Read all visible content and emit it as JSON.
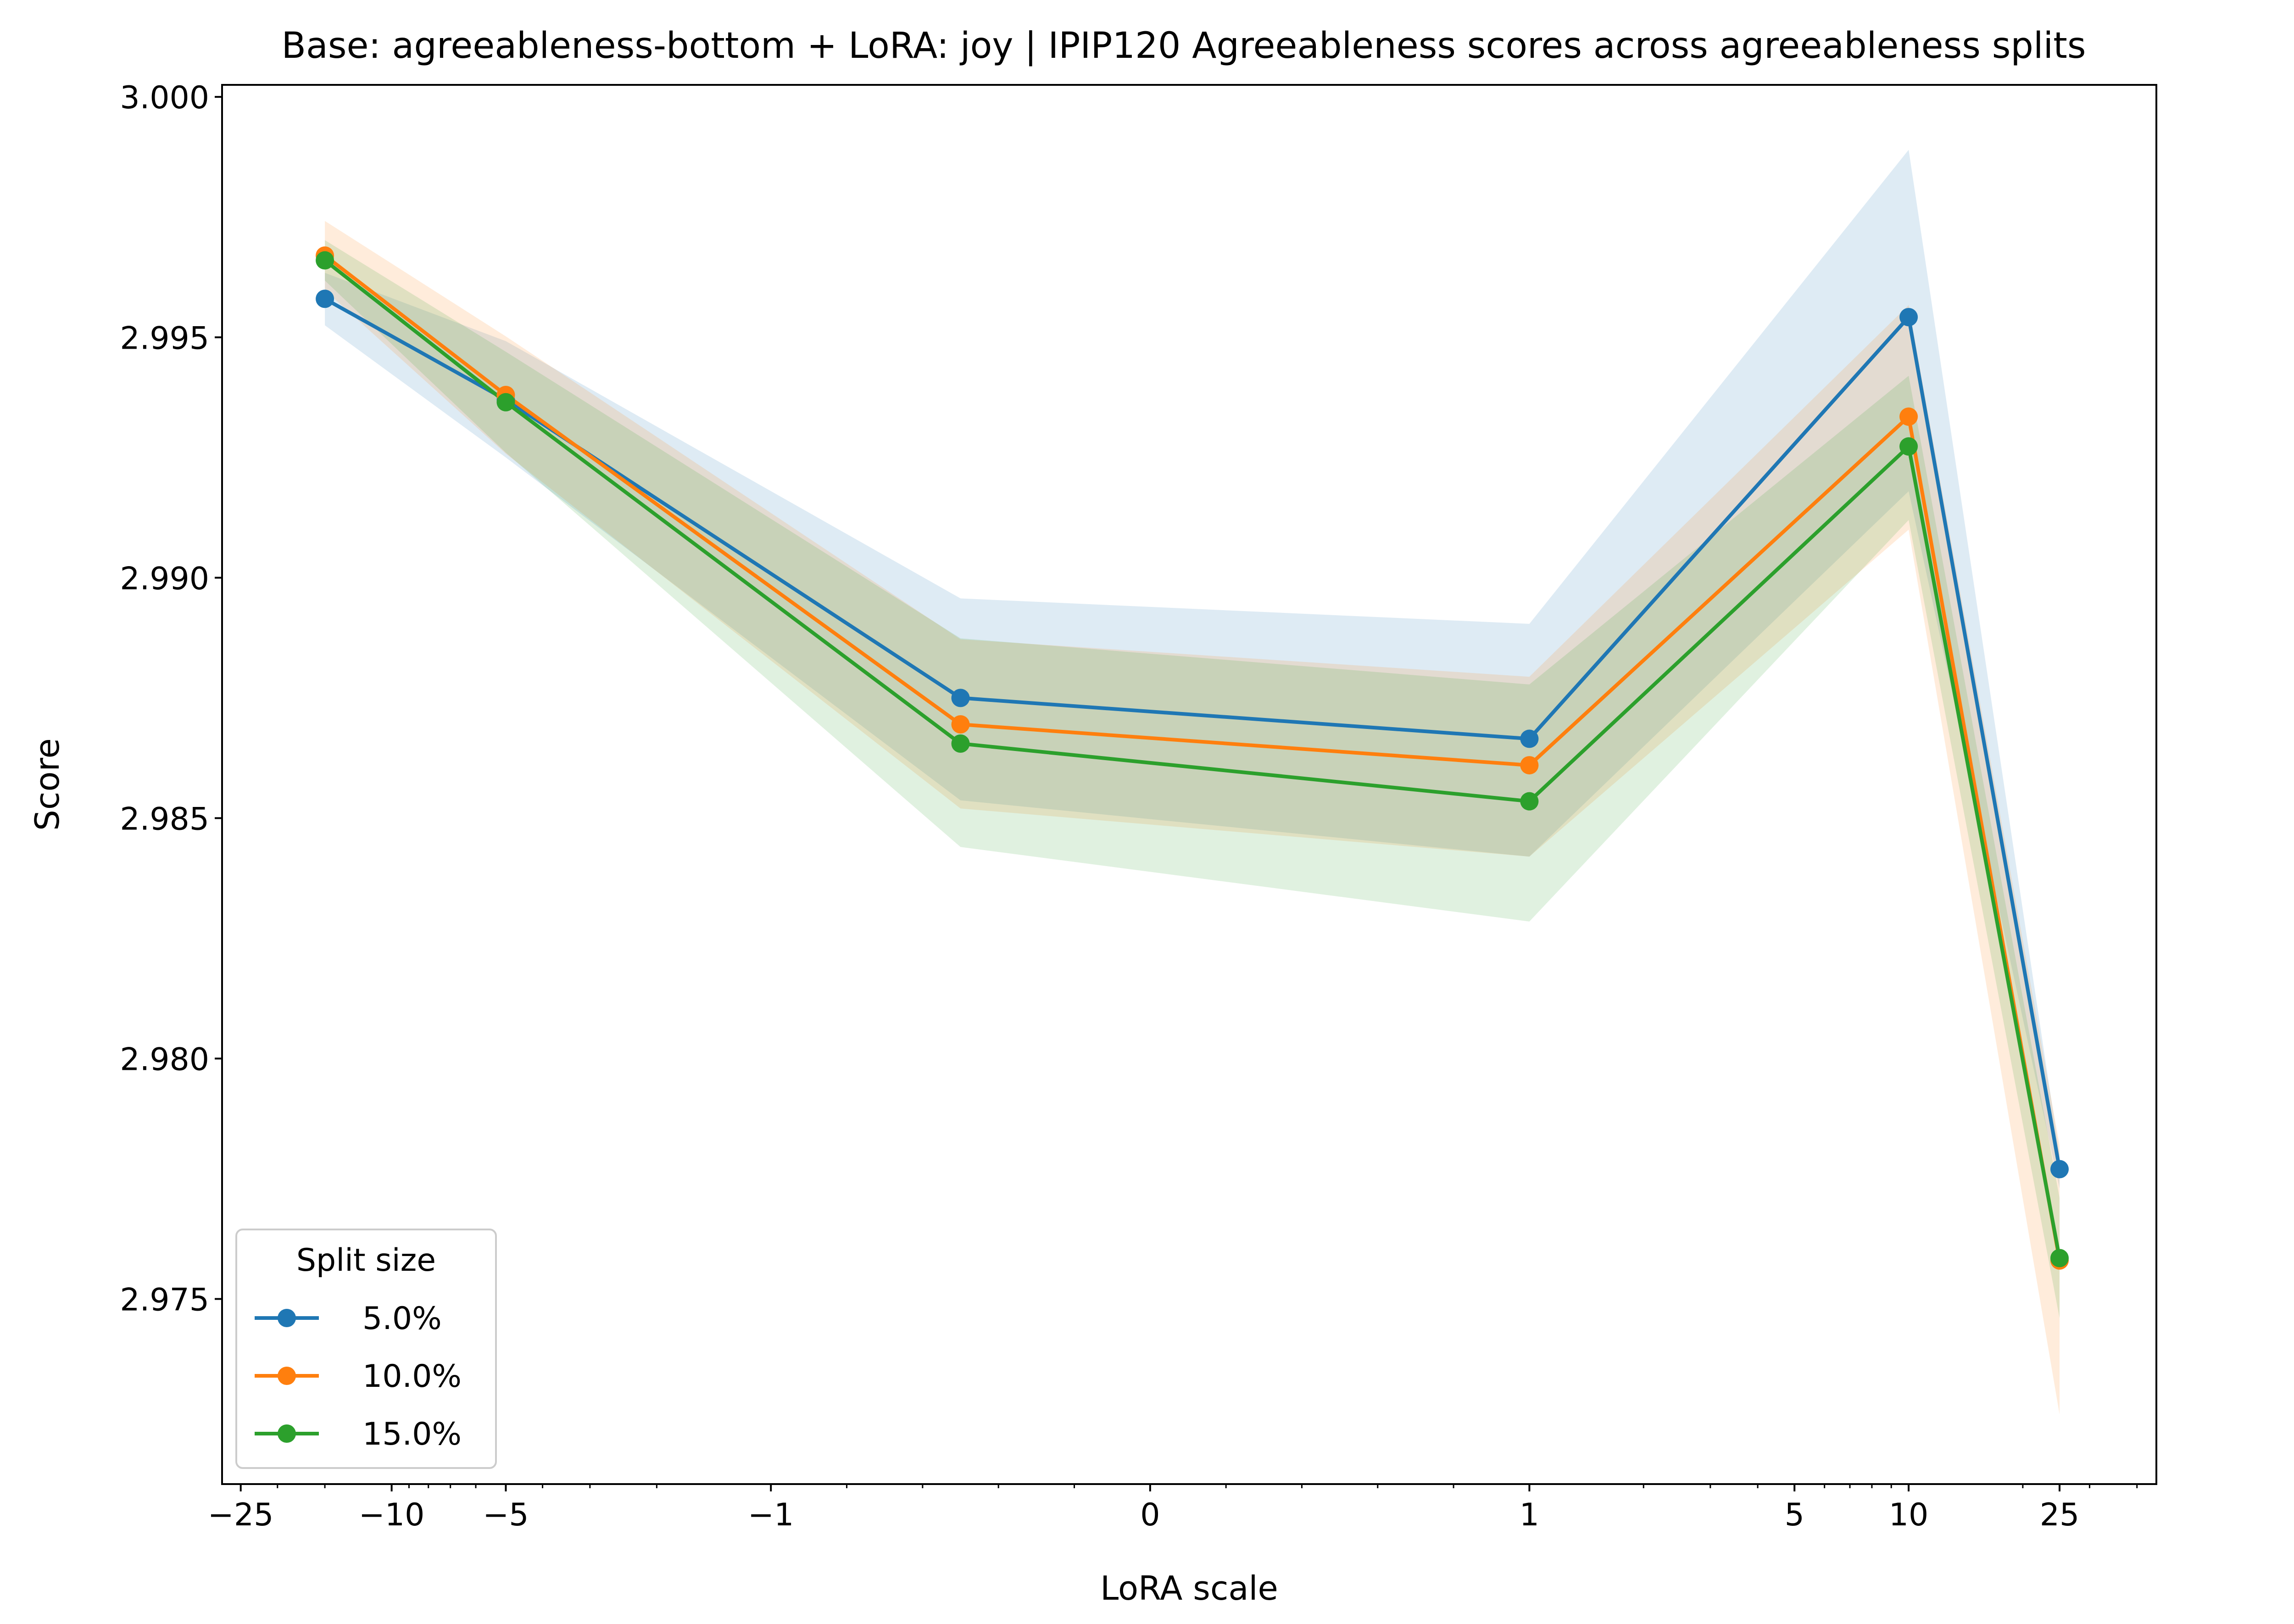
{
  "chart_data": {
    "type": "line",
    "title": "Base: agreeableness-bottom + LoRA: joy | IPIP120 Agreeableness scores across agreeableness splits",
    "xlabel": "LoRA scale",
    "ylabel": "Score",
    "x_scale": "symlog",
    "x_tick_values": [
      -25,
      -10,
      -5,
      -1,
      0,
      1,
      5,
      10,
      25
    ],
    "x_tick_labels": [
      "−25",
      "−10",
      "−5",
      "−1",
      "0",
      "1",
      "5",
      "10",
      "25"
    ],
    "x": [
      -15,
      -5,
      -0.5,
      1,
      10,
      25
    ],
    "xlim": [
      -28,
      45
    ],
    "ylim": [
      2.97115,
      3.00025
    ],
    "y_ticks": [
      2.975,
      2.98,
      2.985,
      2.99,
      2.995,
      3.0
    ],
    "y_tick_labels": [
      "2.975",
      "2.980",
      "2.985",
      "2.990",
      "2.995",
      "3.000"
    ],
    "grid": false,
    "legend": {
      "title": "Split size",
      "position": "lower-left"
    },
    "series": [
      {
        "name": "5.0%",
        "color": "#1f77b4",
        "values": [
          2.9958,
          2.9937,
          2.9875,
          2.98665,
          2.99542,
          2.9777
        ],
        "upper": [
          2.99634,
          2.99492,
          2.98957,
          2.98904,
          2.9989,
          2.978
        ],
        "lower": [
          2.99525,
          2.9925,
          2.98537,
          2.9842,
          2.9918,
          2.9773
        ]
      },
      {
        "name": "10.0%",
        "color": "#ff7f0e",
        "values": [
          2.9967,
          2.9938,
          2.98695,
          2.9861,
          2.99335,
          2.9758
        ],
        "upper": [
          2.99742,
          2.99502,
          2.98872,
          2.98794,
          2.99567,
          2.9782
        ],
        "lower": [
          2.99598,
          2.99258,
          2.9852,
          2.9842,
          2.991,
          2.9726
        ]
      },
      {
        "name": "15.0%",
        "color": "#2ca02c",
        "values": [
          2.9966,
          2.99365,
          2.98655,
          2.98535,
          2.99273,
          2.97585
        ],
        "upper": [
          2.99702,
          2.9947,
          2.98874,
          2.98778,
          2.9942,
          2.9771
        ],
        "lower": [
          2.99618,
          2.9926,
          2.9844,
          2.98285,
          2.9912,
          2.9746
        ]
      }
    ]
  }
}
